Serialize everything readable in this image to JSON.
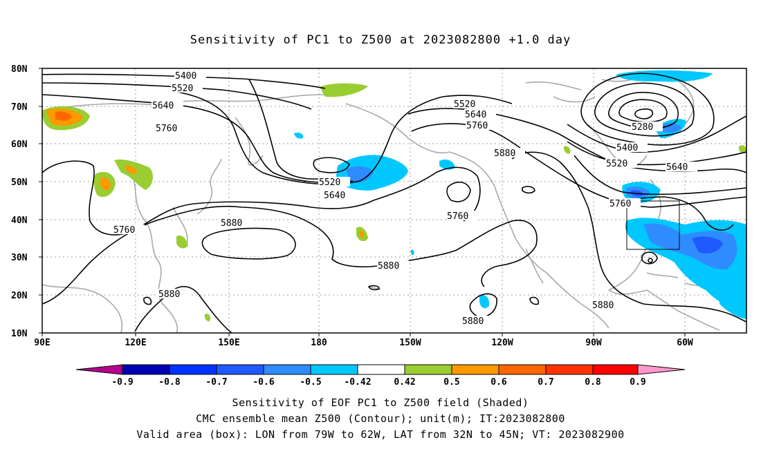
{
  "title": "Sensitivity of PC1 to Z500 at 2023082800 +1.0 day",
  "axes": {
    "lat_ticks": [
      "80N",
      "70N",
      "60N",
      "50N",
      "40N",
      "30N",
      "20N",
      "10N"
    ],
    "lon_ticks": [
      "90E",
      "120E",
      "150E",
      "180",
      "150W",
      "120W",
      "90W",
      "60W"
    ]
  },
  "contours": {
    "labels": [
      "5400",
      "5520",
      "5640",
      "5760",
      "5880",
      "5280"
    ]
  },
  "colorbar": {
    "labels": [
      "-0.9",
      "-0.8",
      "-0.7",
      "-0.6",
      "-0.5",
      "-0.42",
      "0.42",
      "0.5",
      "0.6",
      "0.7",
      "0.8",
      "0.9"
    ],
    "colors": [
      "#b4008c",
      "#0000b4",
      "#0032ff",
      "#1f5aff",
      "#2f8cff",
      "#00c8ff",
      "#ffffff",
      "#9acd32",
      "#ff9900",
      "#ff6600",
      "#ff3300",
      "#ff0000",
      "#ff99cc"
    ]
  },
  "footer": {
    "line1": "Sensitivity of EOF PC1 to Z500 field (Shaded)",
    "line2": "CMC ensemble mean Z500 (Contour); unit(m); IT:2023082800",
    "line3": "Valid area (box): LON from 79W to 62W, LAT from 32N to 45N; VT: 2023082900"
  },
  "colors": {
    "coast": "#a8a8a8",
    "contour": "#000000",
    "grid": "#999999",
    "negative": "#2f8cff",
    "positive": "#9acd32",
    "strong_positive": "#ff6600"
  }
}
